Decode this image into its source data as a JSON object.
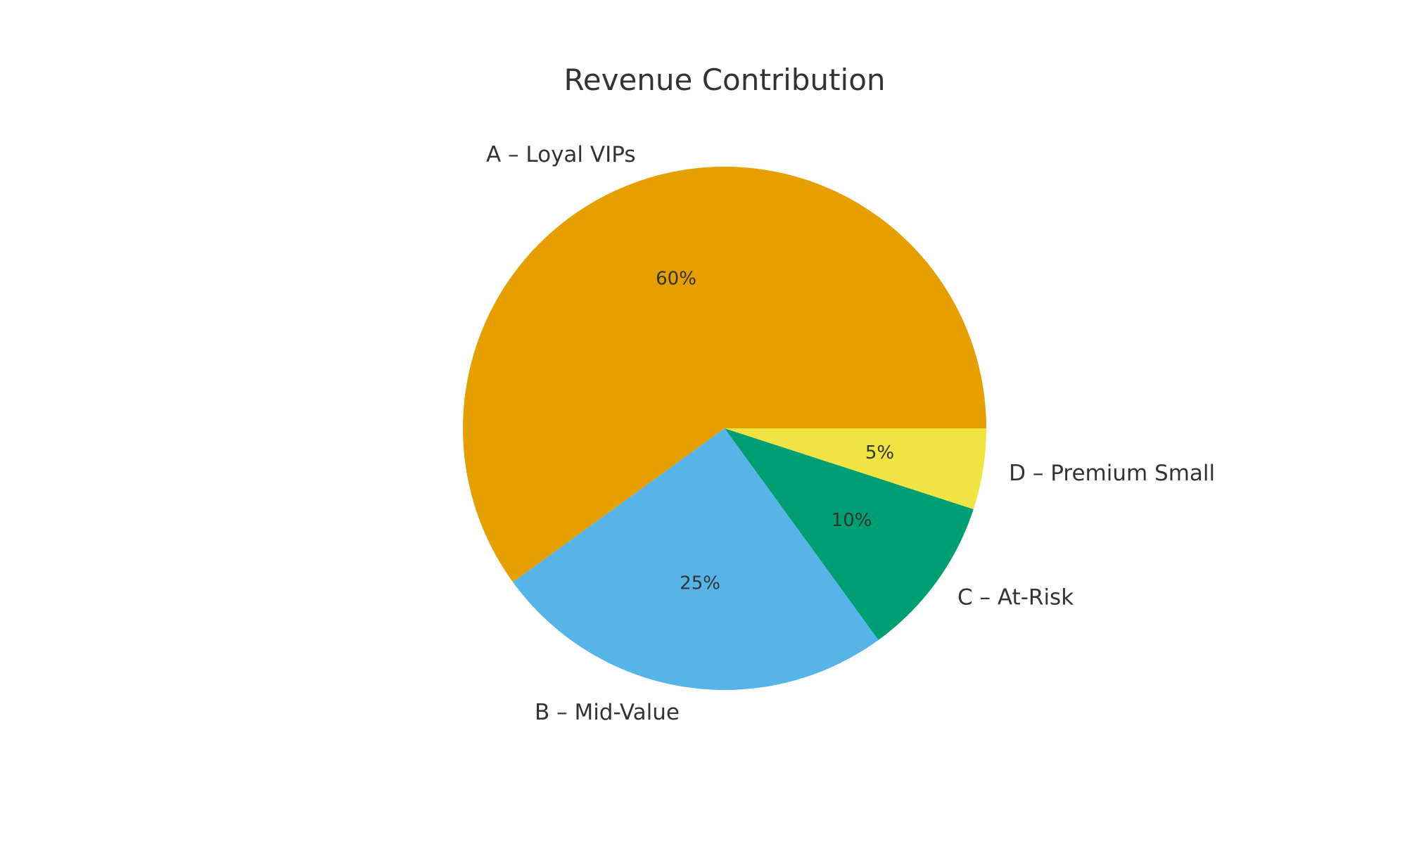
{
  "chart_data": {
    "type": "pie",
    "title": "Revenue Contribution",
    "categories": [
      "A – Loyal VIPs",
      "B – Mid-Value",
      "C – At-Risk",
      "D – Premium Small"
    ],
    "values": [
      60,
      25,
      10,
      5
    ],
    "value_labels": [
      "60%",
      "25%",
      "10%",
      "5%"
    ],
    "colors": [
      "#E69F00",
      "#56B4E9",
      "#009E73",
      "#F0E442"
    ],
    "start_angle_deg": 0,
    "direction": "counterclockwise",
    "legend": "none"
  }
}
